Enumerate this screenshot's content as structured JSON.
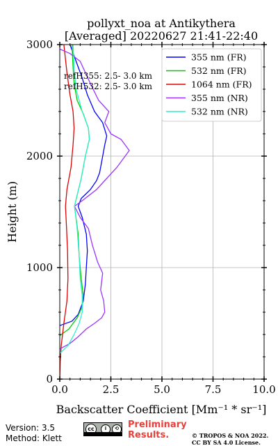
{
  "title_line1": "pollyxt_noa at Antikythera",
  "title_line2": "[Averaged] 20220627 21:41-22:40",
  "refh": {
    "line1": "refH355:  2.5- 3.0 km",
    "line2": "refH532:  2.5- 3.0 km"
  },
  "footer": {
    "version": "Version: 3.5",
    "method": "Method: Klett",
    "preliminary": "Preliminary\nResults.",
    "copyright": "© TROPOS & NOA 2022.\nCC BY SA 4.0 License.",
    "license_icon": "cc-by-sa-icon",
    "license_text": "BY SA"
  },
  "chart_data": {
    "type": "line",
    "title": "pollyxt_noa at Antikythera [Averaged] 20220627 21:41-22:40",
    "xlabel": "Backscatter Coefficient [Mm⁻¹ * sr⁻¹]",
    "ylabel": "Height (m)",
    "xlim": [
      0,
      10
    ],
    "ylim": [
      0,
      3000
    ],
    "xticks": [
      0.0,
      2.5,
      5.0,
      7.5,
      10.0
    ],
    "xtick_labels": [
      "0.0",
      "2.5",
      "5.0",
      "7.5",
      "10.0"
    ],
    "yticks": [
      0,
      1000,
      2000,
      3000
    ],
    "ytick_labels": [
      "0",
      "1000",
      "2000",
      "3000"
    ],
    "grid": true,
    "legend_position": "top-right",
    "series": [
      {
        "name": "355 nm (FR)",
        "color": "#0000ff",
        "points": [
          [
            0,
            480
          ],
          [
            0.6,
            520
          ],
          [
            0.9,
            580
          ],
          [
            1.15,
            700
          ],
          [
            1.25,
            850
          ],
          [
            1.3,
            1000
          ],
          [
            1.35,
            1150
          ],
          [
            1.3,
            1300
          ],
          [
            1.1,
            1450
          ],
          [
            0.9,
            1550
          ],
          [
            1.05,
            1620
          ],
          [
            1.5,
            1700
          ],
          [
            1.8,
            1780
          ],
          [
            1.95,
            1850
          ],
          [
            2.05,
            1950
          ],
          [
            2.2,
            2100
          ],
          [
            2.3,
            2180
          ],
          [
            2.1,
            2300
          ],
          [
            1.7,
            2400
          ],
          [
            1.35,
            2550
          ],
          [
            1.1,
            2700
          ],
          [
            0.8,
            2850
          ],
          [
            0.5,
            3000
          ]
        ]
      },
      {
        "name": "532 nm (FR)",
        "color": "#00cc00",
        "points": [
          [
            0,
            390
          ],
          [
            0.45,
            450
          ],
          [
            0.85,
            550
          ],
          [
            1.1,
            650
          ],
          [
            1.15,
            750
          ],
          [
            1.05,
            900
          ],
          [
            0.95,
            1100
          ],
          [
            0.9,
            1300
          ],
          [
            0.72,
            1550
          ],
          [
            0.85,
            1650
          ],
          [
            1.05,
            1800
          ],
          [
            1.25,
            2000
          ],
          [
            1.45,
            2150
          ],
          [
            1.4,
            2250
          ],
          [
            1.15,
            2380
          ],
          [
            0.85,
            2500
          ],
          [
            0.7,
            2650
          ],
          [
            0.65,
            2800
          ],
          [
            0.6,
            3000
          ]
        ]
      },
      {
        "name": "1064 nm (FR)",
        "color": "#dd0000",
        "points": [
          [
            0,
            0
          ],
          [
            0.02,
            150
          ],
          [
            0.07,
            300
          ],
          [
            0.2,
            500
          ],
          [
            0.35,
            700
          ],
          [
            0.4,
            900
          ],
          [
            0.38,
            1150
          ],
          [
            0.32,
            1400
          ],
          [
            0.28,
            1550
          ],
          [
            0.35,
            1700
          ],
          [
            0.55,
            1900
          ],
          [
            0.65,
            2100
          ],
          [
            0.7,
            2250
          ],
          [
            0.65,
            2400
          ],
          [
            0.5,
            2550
          ],
          [
            0.35,
            2750
          ],
          [
            0.2,
            3000
          ]
        ]
      },
      {
        "name": "355 nm (NR)",
        "color": "#9933ff",
        "points": [
          [
            0,
            270
          ],
          [
            0.5,
            320
          ],
          [
            0.9,
            380
          ],
          [
            1.3,
            450
          ],
          [
            1.7,
            500
          ],
          [
            2.05,
            550
          ],
          [
            2.2,
            600
          ],
          [
            2.15,
            700
          ],
          [
            2.0,
            800
          ],
          [
            2.1,
            950
          ],
          [
            1.85,
            1050
          ],
          [
            1.6,
            1200
          ],
          [
            1.4,
            1350
          ],
          [
            1.0,
            1450
          ],
          [
            0.72,
            1550
          ],
          [
            1.1,
            1600
          ],
          [
            1.8,
            1700
          ],
          [
            2.3,
            1800
          ],
          [
            2.8,
            1900
          ],
          [
            3.2,
            2000
          ],
          [
            3.4,
            2050
          ],
          [
            3.0,
            2150
          ],
          [
            2.5,
            2200
          ],
          [
            2.2,
            2300
          ],
          [
            2.4,
            2400
          ],
          [
            1.9,
            2500
          ],
          [
            1.5,
            2650
          ],
          [
            1.0,
            2850
          ],
          [
            0.5,
            2920
          ],
          [
            0,
            2960
          ]
        ]
      },
      {
        "name": "532 nm (NR)",
        "color": "#33eecc",
        "points": [
          [
            0,
            230
          ],
          [
            0.4,
            300
          ],
          [
            0.7,
            400
          ],
          [
            0.95,
            500
          ],
          [
            1.1,
            600
          ],
          [
            1.1,
            750
          ],
          [
            1.0,
            900
          ],
          [
            0.95,
            1100
          ],
          [
            0.85,
            1350
          ],
          [
            0.72,
            1550
          ],
          [
            0.85,
            1650
          ],
          [
            1.05,
            1800
          ],
          [
            1.25,
            2000
          ],
          [
            1.45,
            2150
          ],
          [
            1.4,
            2250
          ],
          [
            1.1,
            2400
          ],
          [
            0.8,
            2600
          ],
          [
            0.7,
            2800
          ],
          [
            0.65,
            3000
          ]
        ]
      }
    ]
  }
}
